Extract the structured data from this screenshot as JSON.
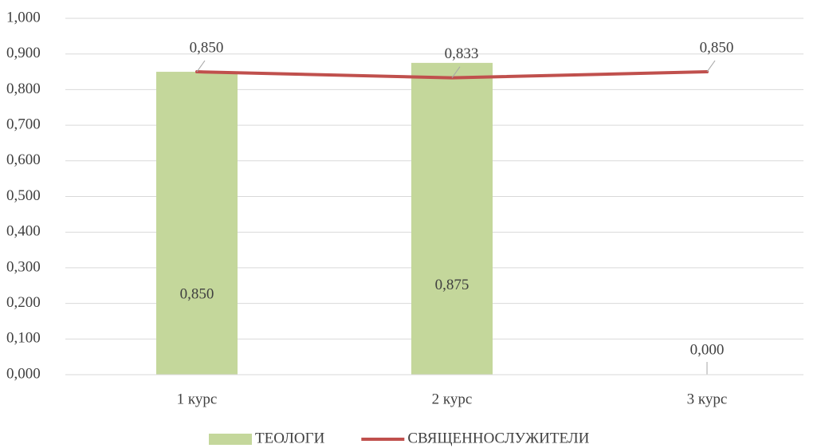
{
  "chart_data": {
    "type": "combo",
    "categories": [
      "1 курс",
      "2 курс",
      "3 курс"
    ],
    "series": [
      {
        "name": "ТЕОЛОГИ",
        "type": "bar",
        "color": "#c4d79b",
        "values": [
          0.85,
          0.875,
          0
        ],
        "value_labels": [
          "0,850",
          "0,875",
          "0,000"
        ]
      },
      {
        "name": "СВЯЩЕННОСЛУЖИТЕЛИ",
        "type": "line",
        "color": "#c0504d",
        "values": [
          0.85,
          0.833,
          0.85
        ],
        "value_labels": [
          "0,850",
          "0,833",
          "0,850"
        ]
      }
    ],
    "ylim": [
      0,
      1
    ],
    "yticks": [
      {
        "value": 0,
        "label": "0,000"
      },
      {
        "value": 0.1,
        "label": "0,100"
      },
      {
        "value": 0.2,
        "label": "0,200"
      },
      {
        "value": 0.3,
        "label": "0,300"
      },
      {
        "value": 0.4,
        "label": "0,400"
      },
      {
        "value": 0.5,
        "label": "0,500"
      },
      {
        "value": 0.6,
        "label": "0,600"
      },
      {
        "value": 0.7,
        "label": "0,700"
      },
      {
        "value": 0.8,
        "label": "0,800"
      },
      {
        "value": 0.9,
        "label": "0,900"
      },
      {
        "value": 1,
        "label": "1,000"
      }
    ],
    "grid": true,
    "legend": "bottom"
  }
}
